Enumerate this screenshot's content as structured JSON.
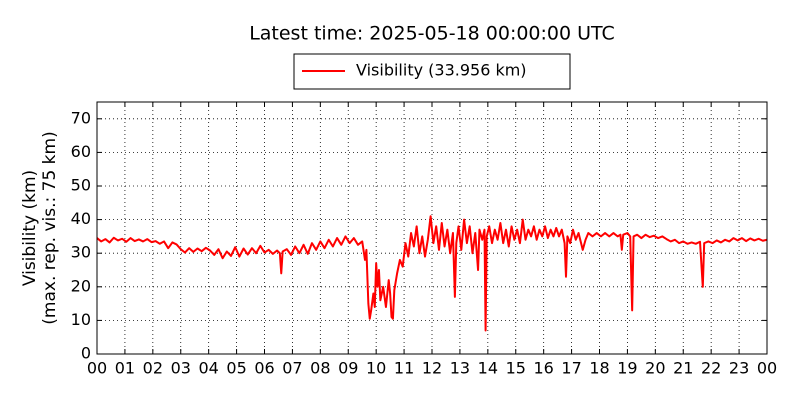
{
  "chart_data": {
    "type": "line",
    "title": "Latest time: 2025-05-18 00:00:00 UTC",
    "ylabel": [
      "Visibility (km)",
      "(max. rep. vis.: 75 km)"
    ],
    "xlim": [
      0,
      24
    ],
    "ylim": [
      0,
      75
    ],
    "xticks": [
      {
        "value": 0,
        "label": "00"
      },
      {
        "value": 1,
        "label": "01"
      },
      {
        "value": 2,
        "label": "02"
      },
      {
        "value": 3,
        "label": "03"
      },
      {
        "value": 4,
        "label": "04"
      },
      {
        "value": 5,
        "label": "05"
      },
      {
        "value": 6,
        "label": "06"
      },
      {
        "value": 7,
        "label": "07"
      },
      {
        "value": 8,
        "label": "08"
      },
      {
        "value": 9,
        "label": "09"
      },
      {
        "value": 10,
        "label": "10"
      },
      {
        "value": 11,
        "label": "11"
      },
      {
        "value": 12,
        "label": "12"
      },
      {
        "value": 13,
        "label": "13"
      },
      {
        "value": 14,
        "label": "14"
      },
      {
        "value": 15,
        "label": "15"
      },
      {
        "value": 16,
        "label": "16"
      },
      {
        "value": 17,
        "label": "17"
      },
      {
        "value": 18,
        "label": "18"
      },
      {
        "value": 19,
        "label": "19"
      },
      {
        "value": 20,
        "label": "20"
      },
      {
        "value": 21,
        "label": "21"
      },
      {
        "value": 22,
        "label": "22"
      },
      {
        "value": 23,
        "label": "23"
      },
      {
        "value": 24,
        "label": "00"
      }
    ],
    "yticks": [
      0,
      10,
      20,
      30,
      40,
      50,
      60,
      70
    ],
    "grid": true,
    "legend": "top",
    "x": [
      0,
      0.15,
      0.3,
      0.45,
      0.6,
      0.75,
      0.9,
      1.05,
      1.2,
      1.35,
      1.5,
      1.65,
      1.8,
      1.95,
      2.1,
      2.25,
      2.4,
      2.55,
      2.7,
      2.85,
      3.0,
      3.15,
      3.3,
      3.45,
      3.6,
      3.75,
      3.9,
      4.05,
      4.2,
      4.35,
      4.5,
      4.65,
      4.8,
      4.95,
      5.1,
      5.25,
      5.4,
      5.55,
      5.7,
      5.85,
      6.0,
      6.15,
      6.3,
      6.45,
      6.55,
      6.6,
      6.65,
      6.8,
      6.95,
      7.1,
      7.25,
      7.4,
      7.55,
      7.7,
      7.85,
      8.0,
      8.15,
      8.3,
      8.45,
      8.6,
      8.75,
      8.9,
      9.05,
      9.2,
      9.35,
      9.5,
      9.6,
      9.65,
      9.72,
      9.77,
      9.82,
      9.9,
      9.95,
      10.0,
      10.05,
      10.1,
      10.15,
      10.25,
      10.35,
      10.45,
      10.5,
      10.55,
      10.6,
      10.65,
      10.75,
      10.85,
      10.95,
      11.05,
      11.15,
      11.25,
      11.35,
      11.45,
      11.55,
      11.65,
      11.75,
      11.85,
      11.95,
      12.05,
      12.15,
      12.25,
      12.35,
      12.45,
      12.55,
      12.65,
      12.75,
      12.82,
      12.87,
      12.95,
      13.05,
      13.15,
      13.25,
      13.35,
      13.45,
      13.55,
      13.65,
      13.7,
      13.8,
      13.88,
      13.92,
      13.96,
      14.05,
      14.15,
      14.25,
      14.35,
      14.45,
      14.55,
      14.65,
      14.75,
      14.85,
      14.95,
      15.05,
      15.15,
      15.25,
      15.35,
      15.45,
      15.55,
      15.65,
      15.75,
      15.85,
      15.95,
      16.05,
      16.15,
      16.25,
      16.35,
      16.45,
      16.55,
      16.65,
      16.75,
      16.8,
      16.85,
      16.95,
      17.05,
      17.15,
      17.25,
      17.4,
      17.5,
      17.6,
      17.75,
      17.9,
      18.05,
      18.2,
      18.35,
      18.5,
      18.65,
      18.75,
      18.8,
      18.85,
      19.0,
      19.1,
      19.17,
      19.22,
      19.35,
      19.5,
      19.65,
      19.8,
      19.95,
      20.1,
      20.25,
      20.4,
      20.55,
      20.7,
      20.85,
      21.0,
      21.15,
      21.3,
      21.45,
      21.6,
      21.7,
      21.75,
      21.9,
      22.05,
      22.2,
      22.35,
      22.5,
      22.65,
      22.8,
      22.95,
      23.1,
      23.25,
      23.4,
      23.55,
      23.7,
      23.85,
      24
    ],
    "series": [
      {
        "name": "Visibility (33.956 km)",
        "color": "#ff0000",
        "values": [
          34.5,
          33.5,
          34.2,
          33.2,
          34.6,
          33.8,
          34.3,
          33.4,
          34.5,
          33.6,
          34.1,
          33.5,
          34.2,
          33.3,
          33.6,
          32.8,
          33.5,
          31.5,
          33.2,
          32.6,
          31.2,
          30.2,
          31.5,
          30.4,
          31.4,
          30.6,
          31.6,
          30.8,
          29.5,
          31.2,
          28.5,
          30.5,
          29.2,
          31.8,
          29.0,
          31.4,
          29.6,
          31.5,
          30.0,
          32.2,
          30.2,
          31.0,
          29.8,
          30.8,
          30.0,
          24.0,
          30.5,
          31.2,
          29.5,
          32.0,
          30.0,
          32.5,
          29.8,
          33.0,
          31.0,
          33.5,
          31.5,
          34.0,
          32.0,
          34.5,
          32.5,
          35.0,
          33.0,
          34.5,
          32.5,
          33.5,
          28.0,
          31.0,
          15.0,
          10.5,
          13.0,
          18.0,
          14.0,
          27.0,
          20.0,
          25.0,
          16.0,
          20.0,
          14.0,
          22.0,
          18.0,
          11.0,
          10.5,
          19.0,
          24.0,
          28.0,
          26.0,
          33.0,
          29.0,
          36.0,
          32.0,
          38.0,
          30.0,
          35.0,
          29.0,
          34.0,
          41.0,
          33.0,
          38.0,
          31.0,
          39.0,
          32.0,
          37.0,
          30.0,
          36.0,
          17.0,
          33.0,
          38.0,
          31.0,
          40.0,
          33.0,
          38.0,
          30.0,
          36.0,
          25.0,
          37.0,
          34.0,
          37.0,
          7.0,
          35.0,
          38.0,
          33.0,
          37.0,
          34.0,
          39.0,
          33.0,
          37.0,
          32.0,
          38.0,
          34.0,
          37.0,
          33.0,
          40.0,
          34.0,
          37.0,
          35.0,
          38.0,
          34.0,
          37.0,
          35.0,
          38.0,
          34.5,
          37.0,
          35.0,
          37.5,
          35.0,
          37.0,
          33.0,
          23.0,
          35.0,
          33.0,
          37.0,
          34.0,
          36.0,
          31.0,
          34.0,
          36.0,
          35.0,
          36.0,
          35.0,
          36.0,
          35.0,
          36.0,
          35.0,
          35.5,
          31.0,
          35.5,
          36.0,
          35.0,
          13.0,
          35.0,
          35.5,
          34.5,
          35.5,
          34.8,
          35.2,
          34.5,
          35.0,
          34.2,
          33.5,
          34.0,
          33.0,
          33.5,
          32.8,
          33.2,
          32.8,
          33.4,
          20.0,
          33.0,
          33.5,
          33.0,
          33.8,
          33.2,
          34.0,
          33.5,
          34.5,
          33.8,
          34.5,
          33.6,
          34.4,
          33.8,
          34.3,
          33.7,
          34.0
        ]
      }
    ]
  }
}
